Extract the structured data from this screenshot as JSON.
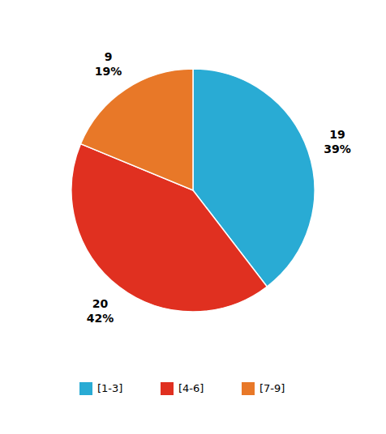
{
  "chart_data": {
    "type": "pie",
    "categories": [
      "[1-3]",
      "[4-6]",
      "[7-9]"
    ],
    "values": [
      19,
      20,
      9
    ],
    "shares": [
      39,
      42,
      19
    ],
    "share_labels": [
      "39%",
      "42%",
      "19%"
    ],
    "colors": [
      "#29ABD4",
      "#E03020",
      "#E87828"
    ],
    "data_labels": true,
    "legend": "bottom"
  }
}
